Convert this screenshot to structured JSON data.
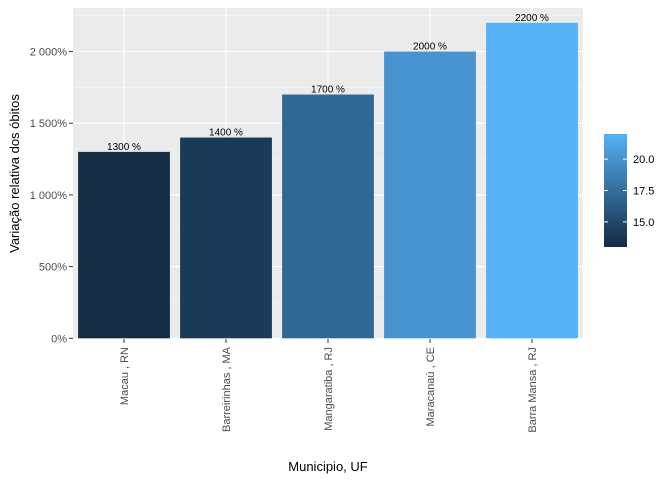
{
  "chart_data": {
    "type": "bar",
    "categories": [
      "Macau , RN",
      "Barreirinhas , MA",
      "Mangaratiba , RJ",
      "Maracanaú , CE",
      "Barra Mansa , RJ"
    ],
    "values": [
      1300,
      1400,
      1700,
      2000,
      2200
    ],
    "data_labels": [
      "1300 %",
      "1400 %",
      "1700 %",
      "2000 %",
      "2200 %"
    ],
    "xlabel": "Municipio, UF",
    "ylabel": "Variação relativa dos óbitos",
    "ylim": [
      0,
      2300
    ],
    "yticks": [
      0,
      500,
      1000,
      1500,
      2000
    ],
    "ytick_labels": [
      "0%",
      "500%",
      "1 000%",
      "1 500%",
      "2 000%"
    ],
    "grid": true,
    "legend": {
      "type": "colorbar",
      "placement": "right",
      "range": [
        13,
        22
      ],
      "ticks": [
        15.0,
        17.5,
        20.0
      ],
      "tick_labels": [
        "15.0",
        "17.5",
        "20.0"
      ],
      "color_low": "#132B43",
      "color_high": "#56B1F7"
    },
    "colors": {
      "panel_background": "#EBEBEB",
      "grid_major": "#FFFFFF",
      "grid_minor": "#F5F5F5",
      "bar_low": "#132B43",
      "bar_high": "#56B1F7"
    }
  }
}
